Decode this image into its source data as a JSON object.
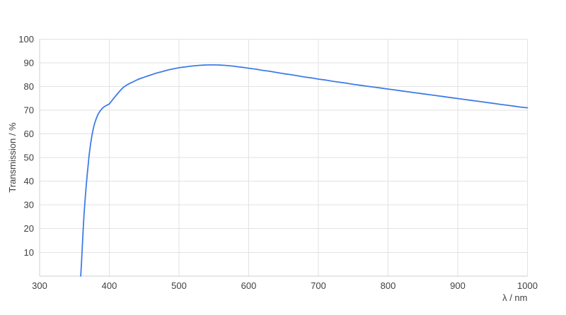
{
  "chart_data": {
    "type": "line",
    "title": "",
    "xlabel": "λ / nm",
    "ylabel": "Transmission / %",
    "xlim": [
      300,
      1000
    ],
    "ylim": [
      0,
      100
    ],
    "x_ticks": [
      300,
      400,
      500,
      600,
      700,
      800,
      900,
      1000
    ],
    "y_ticks": [
      10,
      20,
      30,
      40,
      50,
      60,
      70,
      80,
      90,
      100
    ],
    "grid": true,
    "legend": "none",
    "colors": {
      "line": "#3e7ce8",
      "grid": "#e2e2e2",
      "axis": "#cfcfcf",
      "text": "#3f3f3f",
      "background": "#ffffff"
    },
    "series": [
      {
        "name": "Transmission",
        "points": [
          [
            359,
            0
          ],
          [
            360,
            5
          ],
          [
            361,
            11
          ],
          [
            362,
            17
          ],
          [
            363,
            22.5
          ],
          [
            364,
            27
          ],
          [
            365,
            31
          ],
          [
            366,
            35
          ],
          [
            367,
            38.5
          ],
          [
            368,
            42
          ],
          [
            369,
            45
          ],
          [
            370,
            48
          ],
          [
            371,
            50.8
          ],
          [
            372,
            53.2
          ],
          [
            373,
            55.4
          ],
          [
            374,
            57.4
          ],
          [
            375,
            59.2
          ],
          [
            376,
            60.8
          ],
          [
            378,
            63.4
          ],
          [
            380,
            65.4
          ],
          [
            382,
            67
          ],
          [
            384,
            68.3
          ],
          [
            386,
            69.3
          ],
          [
            388,
            70.1
          ],
          [
            390,
            70.8
          ],
          [
            393,
            71.5
          ],
          [
            396,
            72
          ],
          [
            400,
            72.6
          ],
          [
            404,
            74.1
          ],
          [
            408,
            75.6
          ],
          [
            412,
            77
          ],
          [
            416,
            78.4
          ],
          [
            420,
            79.6
          ],
          [
            425,
            80.6
          ],
          [
            430,
            81.4
          ],
          [
            435,
            82.1
          ],
          [
            440,
            82.8
          ],
          [
            445,
            83.4
          ],
          [
            450,
            83.9
          ],
          [
            455,
            84.4
          ],
          [
            460,
            84.9
          ],
          [
            465,
            85.4
          ],
          [
            470,
            85.8
          ],
          [
            475,
            86.2
          ],
          [
            480,
            86.6
          ],
          [
            485,
            87
          ],
          [
            490,
            87.3
          ],
          [
            495,
            87.6
          ],
          [
            500,
            87.9
          ],
          [
            505,
            88.1
          ],
          [
            510,
            88.3
          ],
          [
            515,
            88.5
          ],
          [
            520,
            88.65
          ],
          [
            525,
            88.8
          ],
          [
            530,
            88.9
          ],
          [
            535,
            89
          ],
          [
            540,
            89.05
          ],
          [
            545,
            89.1
          ],
          [
            550,
            89.1
          ],
          [
            555,
            89.05
          ],
          [
            560,
            89
          ],
          [
            565,
            88.9
          ],
          [
            570,
            88.8
          ],
          [
            575,
            88.65
          ],
          [
            580,
            88.5
          ],
          [
            585,
            88.3
          ],
          [
            590,
            88.1
          ],
          [
            595,
            87.9
          ],
          [
            600,
            87.7
          ],
          [
            610,
            87.3
          ],
          [
            620,
            86.8
          ],
          [
            630,
            86.4
          ],
          [
            640,
            85.9
          ],
          [
            650,
            85.4
          ],
          [
            660,
            85
          ],
          [
            670,
            84.5
          ],
          [
            680,
            84
          ],
          [
            690,
            83.6
          ],
          [
            700,
            83.1
          ],
          [
            710,
            82.7
          ],
          [
            720,
            82.2
          ],
          [
            730,
            81.8
          ],
          [
            740,
            81.4
          ],
          [
            750,
            80.9
          ],
          [
            760,
            80.5
          ],
          [
            770,
            80.1
          ],
          [
            780,
            79.7
          ],
          [
            790,
            79.3
          ],
          [
            800,
            78.9
          ],
          [
            810,
            78.5
          ],
          [
            820,
            78.1
          ],
          [
            830,
            77.7
          ],
          [
            840,
            77.3
          ],
          [
            850,
            76.9
          ],
          [
            860,
            76.5
          ],
          [
            870,
            76.1
          ],
          [
            880,
            75.7
          ],
          [
            890,
            75.3
          ],
          [
            900,
            74.9
          ],
          [
            910,
            74.5
          ],
          [
            920,
            74.1
          ],
          [
            930,
            73.7
          ],
          [
            940,
            73.3
          ],
          [
            950,
            72.9
          ],
          [
            960,
            72.5
          ],
          [
            970,
            72.1
          ],
          [
            980,
            71.7
          ],
          [
            990,
            71.3
          ],
          [
            1000,
            71
          ]
        ]
      }
    ]
  }
}
